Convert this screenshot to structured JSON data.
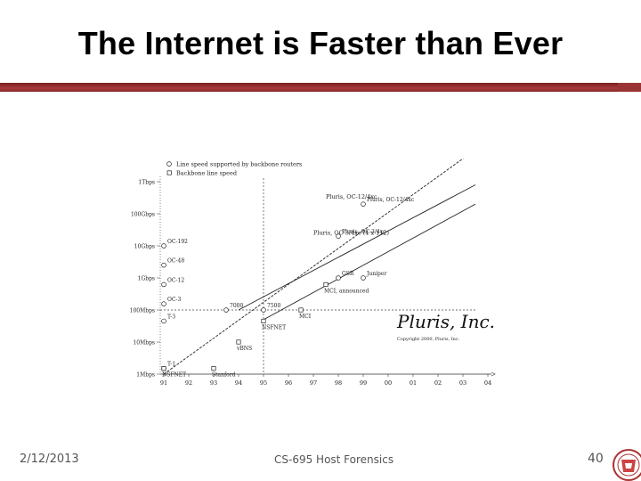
{
  "slide": {
    "title": "The Internet is Faster than Ever",
    "footer_date": "2/12/2013",
    "footer_course": "CS-695 Host Forensics",
    "page_number": "40"
  },
  "colors": {
    "title_bar": "#8a2a2a",
    "text": "#000000",
    "footer_text": "#555555"
  },
  "icons": [
    "university-seal-icon"
  ],
  "chart_data": {
    "type": "scatter",
    "legend": [
      "Line speed supported by backbone routers",
      "Backbone line speed"
    ],
    "legend_placement": "top-left",
    "x_ticks": [
      "91",
      "92",
      "93",
      "94",
      "95",
      "96",
      "97",
      "98",
      "99",
      "00",
      "01",
      "02",
      "03",
      "04"
    ],
    "y_ticks": [
      "1Tbps",
      "100Gbps",
      "10Gbps",
      "1Gbps",
      "100Mbps",
      "10Mbps",
      "1Mbps"
    ],
    "y_scale": "log",
    "grid": false,
    "reference_lines": {
      "year": "95",
      "level": "100Mbps"
    },
    "line_labels": [
      "Pluris, OC-12/4xc",
      "Pluris, OC-3/4xc (4 x 112)"
    ],
    "backbone_router_points": [
      {
        "label": "OC-192",
        "year": 91,
        "y": "10Gbps"
      },
      {
        "label": "OC-48",
        "year": 91,
        "y": "2.5Gbps"
      },
      {
        "label": "OC-12",
        "year": 91,
        "y": "622Mbps"
      },
      {
        "label": "OC-3",
        "year": 91,
        "y": "155Mbps"
      },
      {
        "label": "T-3",
        "year": 91,
        "y": "45Mbps"
      },
      {
        "label": "T-1",
        "year": 91,
        "y": "1.5Mbps"
      },
      {
        "label": "7000",
        "year": 93.5,
        "y": "100Mbps"
      },
      {
        "label": "7500",
        "year": 95,
        "y": "100Mbps"
      },
      {
        "label": "GSR",
        "year": 98,
        "y": "1Gbps"
      },
      {
        "label": "Juniper",
        "year": 99,
        "y": "1Gbps"
      },
      {
        "label": "Pluris, OC-3/4xc",
        "year": 98,
        "y": "20Gbps"
      },
      {
        "label": "Pluris, OC-12/4xc",
        "year": 99,
        "y": "200Gbps"
      }
    ],
    "backbone_line_points": [
      {
        "label": "NSFNET",
        "year": 91,
        "y": "1.5Mbps"
      },
      {
        "label": "Stanford",
        "year": 93,
        "y": "1.5Mbps"
      },
      {
        "label": "vBNS",
        "year": 94,
        "y": "10Mbps"
      },
      {
        "label": "NSFNET",
        "year": 95,
        "y": "45Mbps"
      },
      {
        "label": "MCI",
        "year": 96.5,
        "y": "100Mbps"
      },
      {
        "label": "MCI, announced",
        "year": 97.5,
        "y": "622Mbps"
      }
    ],
    "logo_text": "Pluris, Inc.",
    "logo_caption": "Copyright 2000, Pluris, Inc."
  }
}
